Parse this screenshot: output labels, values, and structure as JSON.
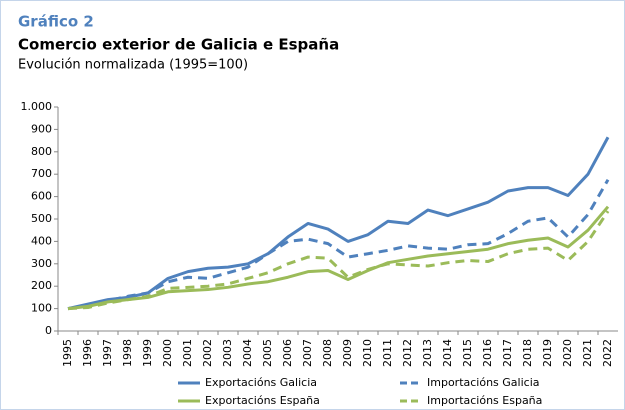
{
  "chart_data": {
    "type": "line",
    "label": "Gráfico 2",
    "title": "Comercio exterior de Galicia e España",
    "subtitle": "Evolución normalizada  (1995=100)",
    "categories": [
      "1995",
      "1996",
      "1997",
      "1998",
      "1999",
      "2000",
      "2001",
      "2002",
      "2003",
      "2004",
      "2005",
      "2006",
      "2007",
      "2008",
      "2009",
      "2010",
      "2011",
      "2012",
      "2013",
      "2014",
      "2015",
      "2016",
      "2017",
      "2018",
      "2019",
      "2020",
      "2021",
      "2022"
    ],
    "series": [
      {
        "name": "Exportacións Galicia",
        "color": "#4f81bd",
        "style": "solid",
        "values": [
          100,
          120,
          140,
          150,
          170,
          235,
          265,
          280,
          285,
          300,
          345,
          420,
          480,
          455,
          400,
          430,
          490,
          480,
          540,
          515,
          545,
          575,
          625,
          640,
          640,
          605,
          700,
          865
        ]
      },
      {
        "name": "Importacións Galicia",
        "color": "#4f81bd",
        "style": "dashed",
        "values": [
          100,
          115,
          135,
          155,
          170,
          220,
          240,
          235,
          260,
          285,
          345,
          400,
          410,
          390,
          330,
          345,
          360,
          380,
          370,
          365,
          385,
          390,
          435,
          490,
          505,
          420,
          520,
          675
        ]
      },
      {
        "name": "Exportacións España",
        "color": "#9bbb59",
        "style": "solid",
        "values": [
          100,
          110,
          130,
          140,
          150,
          175,
          180,
          185,
          195,
          210,
          220,
          240,
          265,
          270,
          230,
          270,
          305,
          320,
          335,
          345,
          355,
          365,
          390,
          405,
          415,
          375,
          450,
          555
        ]
      },
      {
        "name": "Importacións España",
        "color": "#9bbb59",
        "style": "dashed",
        "values": [
          100,
          105,
          125,
          140,
          155,
          190,
          195,
          200,
          210,
          235,
          260,
          300,
          330,
          325,
          240,
          275,
          300,
          295,
          290,
          305,
          315,
          310,
          345,
          365,
          370,
          315,
          400,
          535
        ]
      }
    ],
    "ylim": [
      0,
      1000
    ],
    "yticks": [
      0,
      100,
      200,
      300,
      400,
      500,
      600,
      700,
      800,
      900,
      {
        "value": 1000,
        "label": "1.000"
      }
    ],
    "grid": false,
    "legend": "bottom"
  }
}
